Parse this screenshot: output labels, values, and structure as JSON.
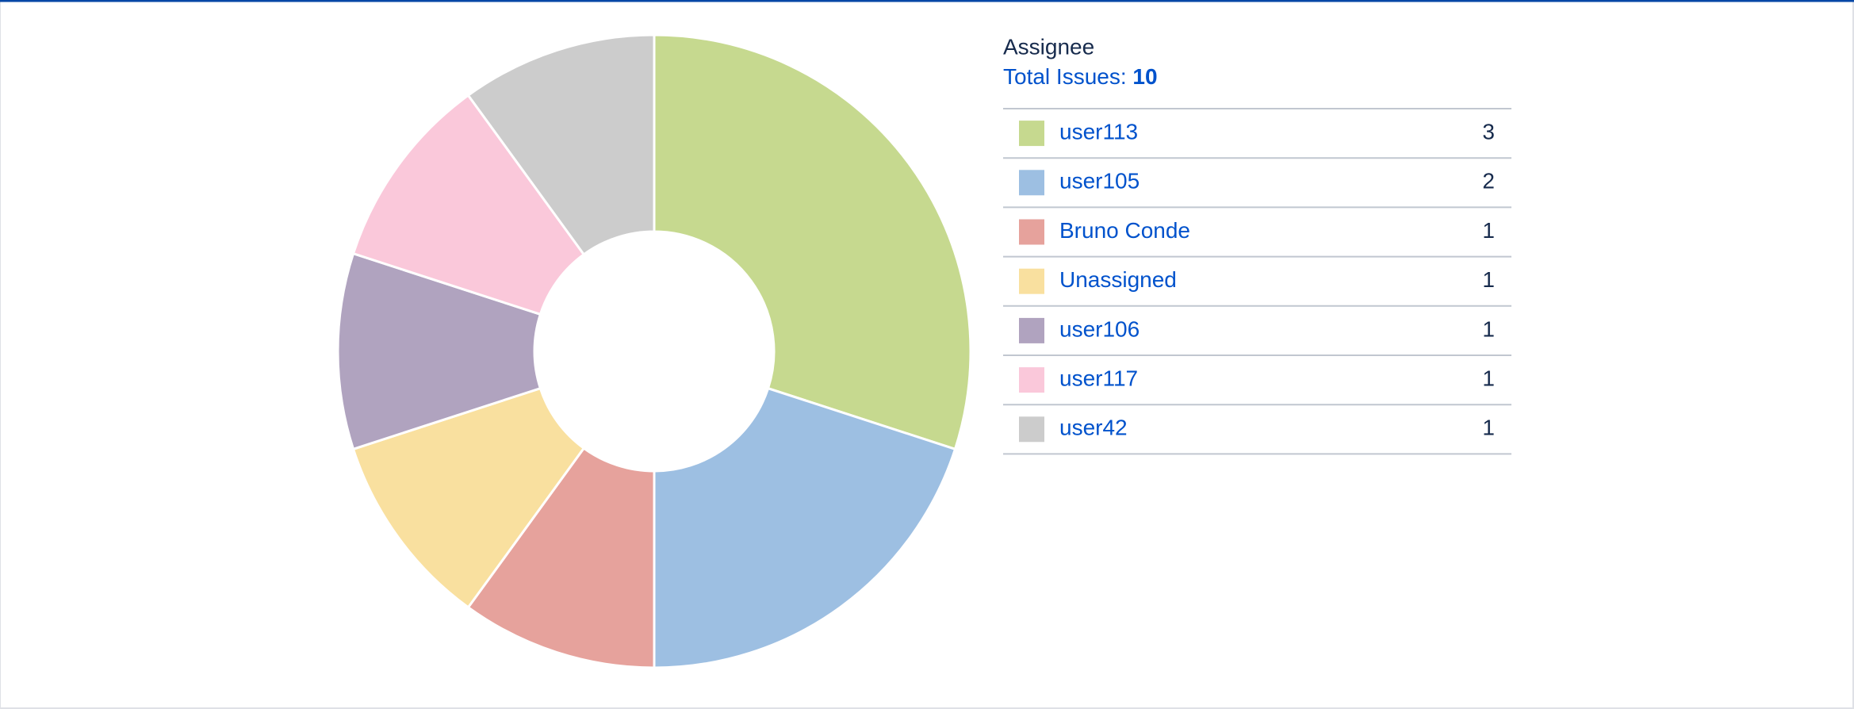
{
  "chart_data": {
    "type": "pie",
    "title": "Assignee",
    "total_label": "Total Issues:",
    "total": 10,
    "categories": [
      "user113",
      "user105",
      "Bruno Conde",
      "Unassigned",
      "user106",
      "user117",
      "user42"
    ],
    "values": [
      3,
      2,
      1,
      1,
      1,
      1,
      1
    ],
    "colors": [
      "#c6d98f",
      "#9dbfe2",
      "#e6a29c",
      "#f9e09f",
      "#b0a3bf",
      "#fac8da",
      "#cccccc"
    ]
  }
}
